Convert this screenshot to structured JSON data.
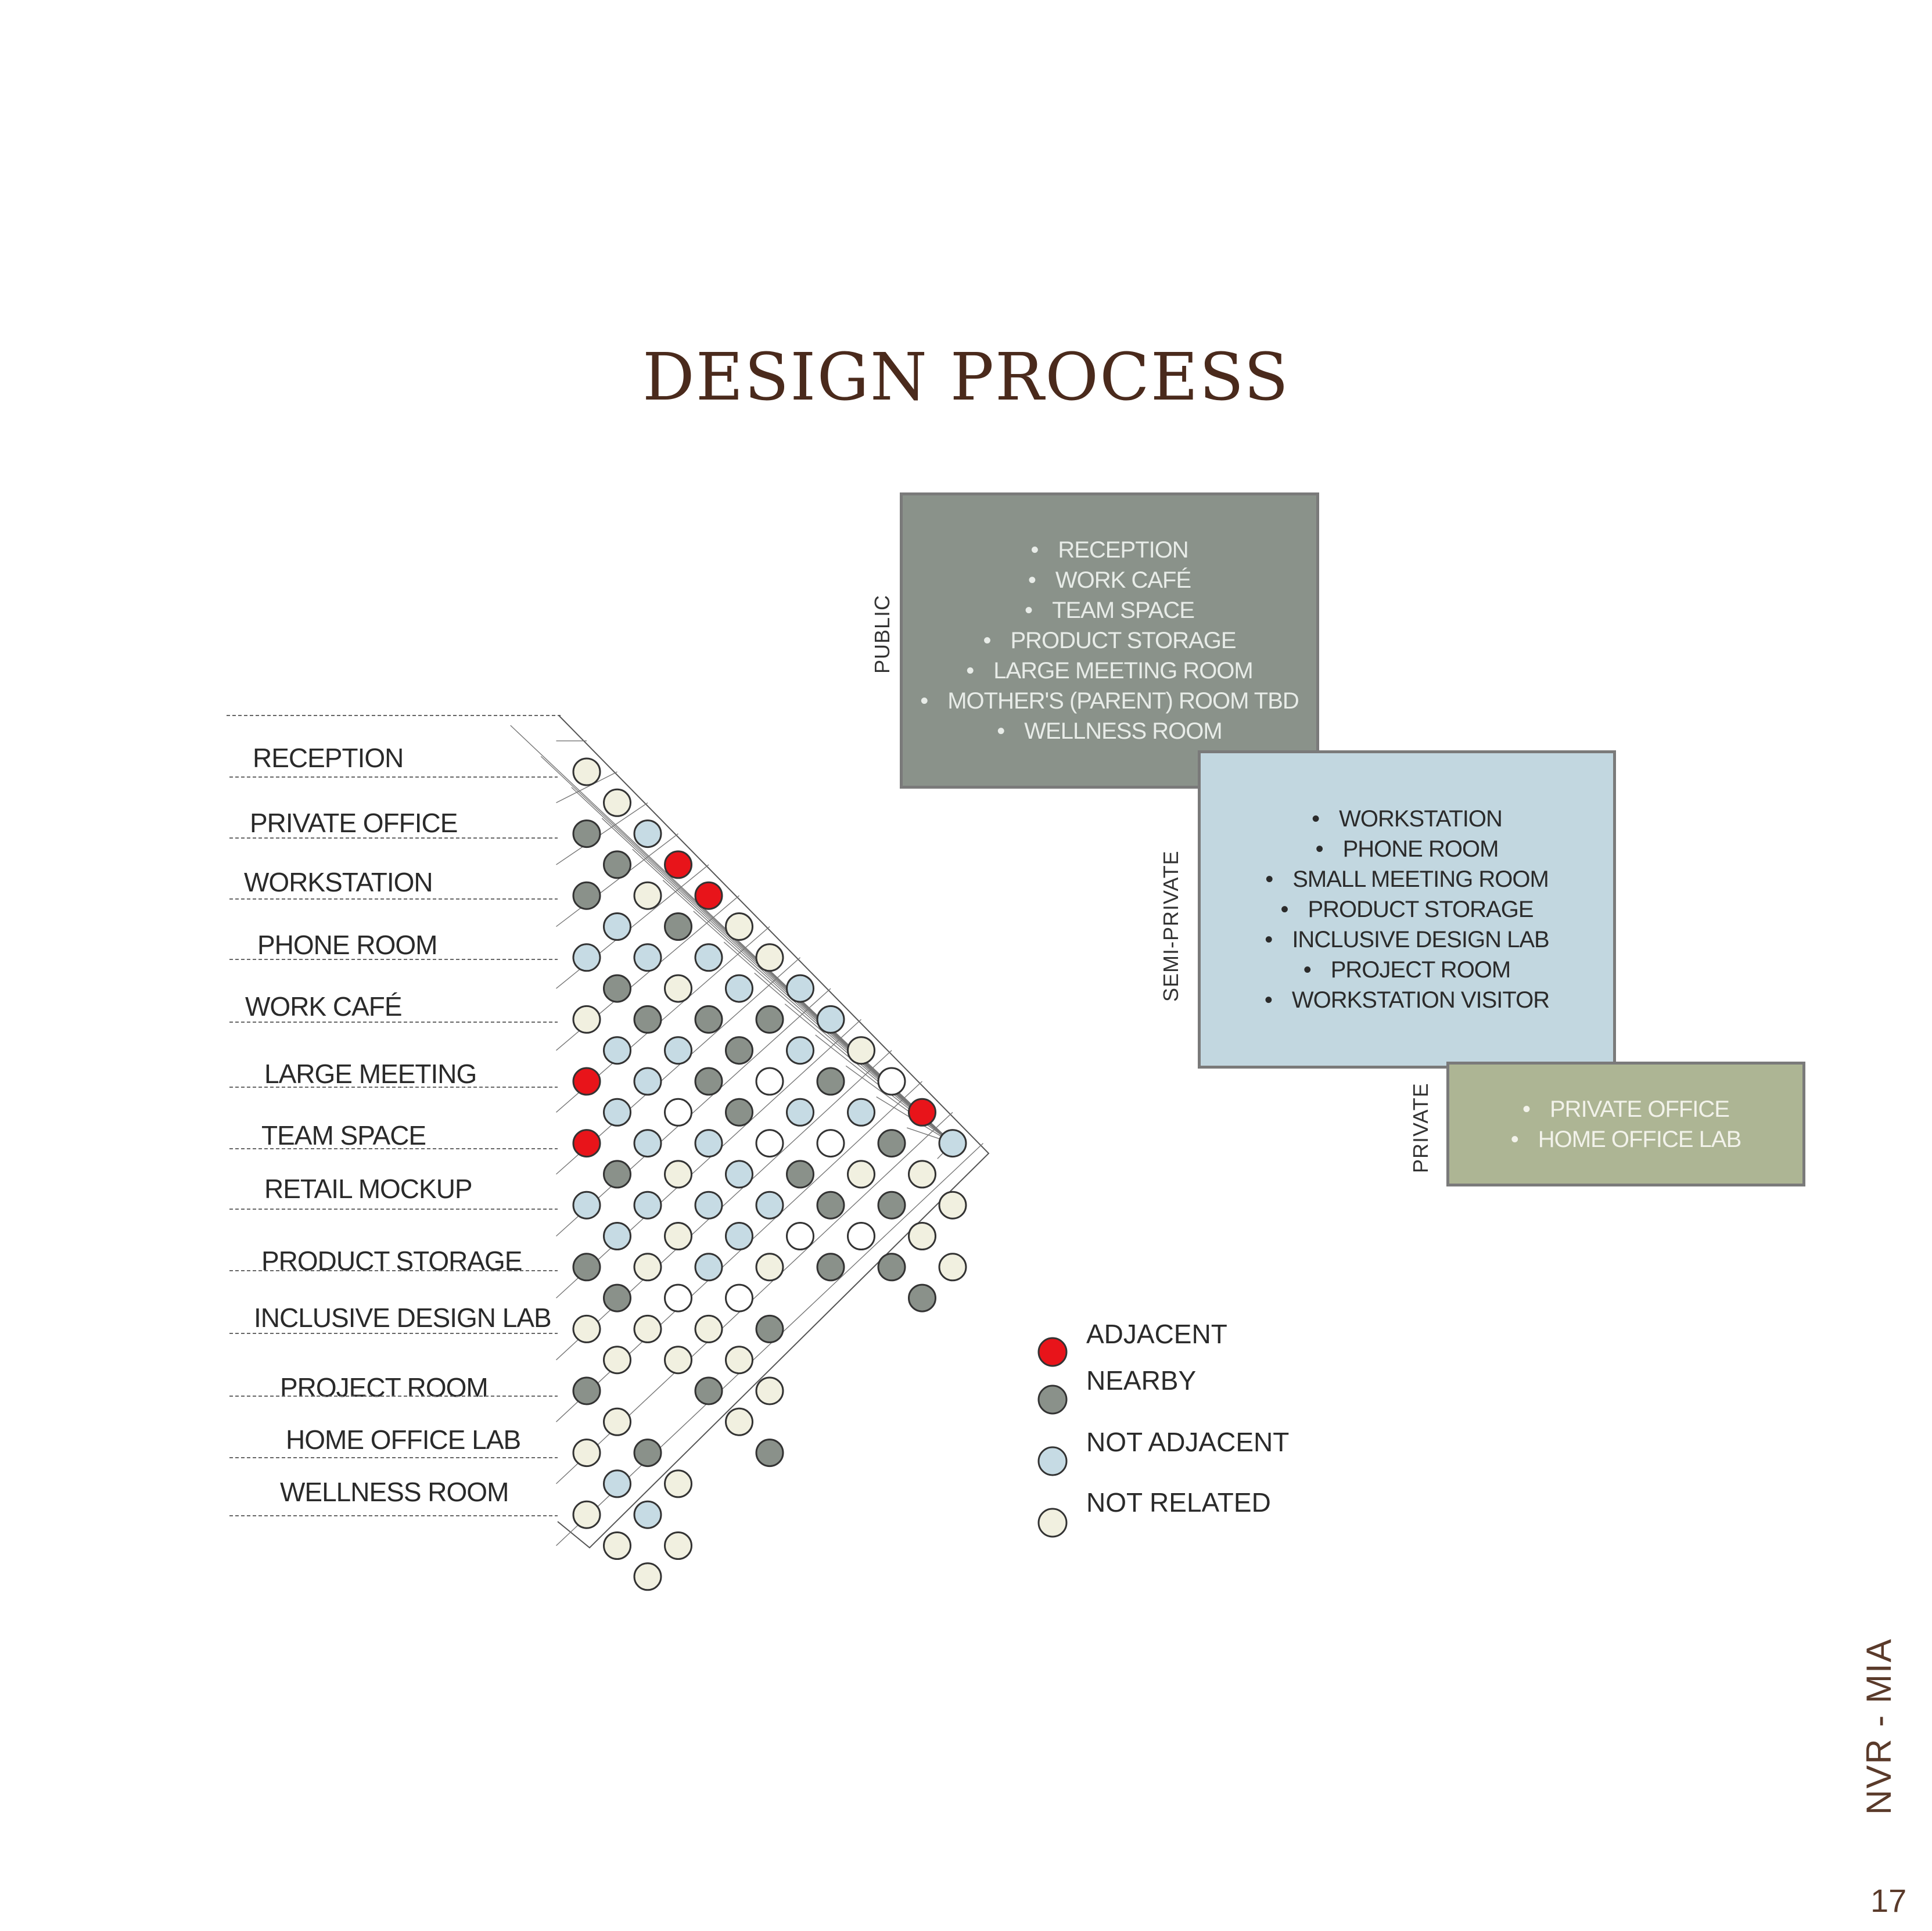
{
  "title": "DESIGN PROCESS",
  "zones": {
    "public": {
      "label": "PUBLIC",
      "color": "#8a928a",
      "items": [
        "RECEPTION",
        "WORK CAFÉ",
        "TEAM SPACE",
        "PRODUCT STORAGE",
        "LARGE MEETING ROOM",
        "MOTHER'S (PARENT) ROOM TBD",
        "WELLNESS ROOM"
      ]
    },
    "semi_private": {
      "label": "SEMI-PRIVATE",
      "color": "#c2d7e0",
      "items": [
        "WORKSTATION",
        "PHONE ROOM",
        "SMALL MEETING ROOM",
        "PRODUCT STORAGE",
        "INCLUSIVE DESIGN LAB",
        "PROJECT ROOM",
        "WORKSTATION VISITOR"
      ]
    },
    "private": {
      "label": "PRIVATE",
      "color": "#adb594",
      "items": [
        "PRIVATE OFFICE",
        "HOME OFFICE LAB"
      ]
    }
  },
  "matrix": {
    "rows": [
      "RECEPTION",
      "PRIVATE OFFICE",
      "WORKSTATION",
      "PHONE ROOM",
      "WORK CAFÉ",
      "LARGE MEETING",
      "TEAM SPACE",
      "RETAIL MOCKUP",
      "PRODUCT STORAGE",
      "INCLUSIVE DESIGN LAB",
      "PROJECT ROOM",
      "HOME OFFICE LAB",
      "WELLNESS ROOM"
    ],
    "relations": [
      "WBRRWWBBWLRB",
      "NWNBBNBNBNWW",
      "BBWNNLBLWNWW",
      "NNBNNLNNLNN",
      "BBLBBBLN",
      "BBWBBW",
      "NBWBLN",
      "BWLWWW",
      "NWWNWN",
      "W",
      "WNW",
      "BBW",
      "WW"
    ]
  },
  "legend": [
    {
      "key": "R",
      "label": "ADJACENT",
      "color": "#e8141a"
    },
    {
      "key": "N",
      "label": "NEARBY",
      "color": "#8a918a"
    },
    {
      "key": "B",
      "label": "NOT ADJACENT",
      "color": "#c6dbe4"
    },
    {
      "key": "W",
      "label": "NOT RELATED",
      "color": "#f1f0e0"
    }
  ],
  "brand": "NVR - MIA",
  "page_number": "17"
}
